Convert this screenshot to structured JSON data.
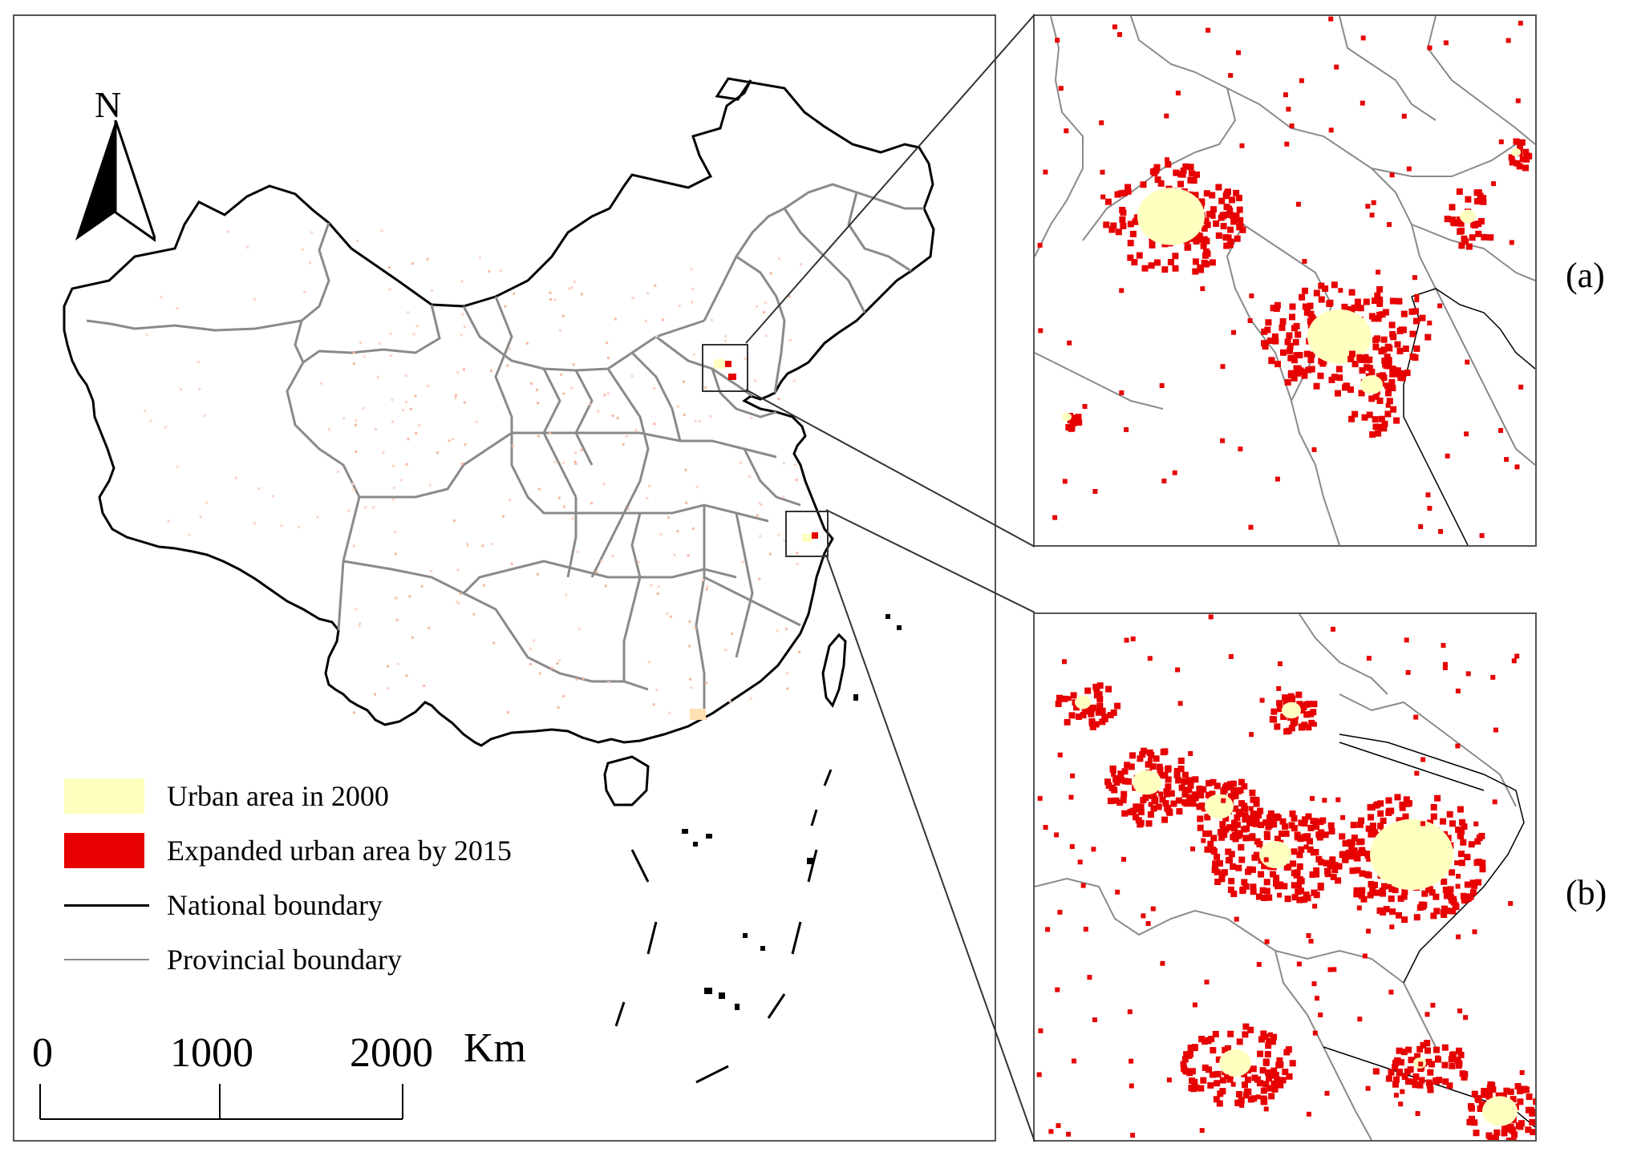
{
  "insets": {
    "a_label": "(a)",
    "b_label": "(b)"
  },
  "north_arrow": {
    "letter": "N",
    "icon": "north-arrow-icon"
  },
  "legend": {
    "urban_2000": "Urban area in 2000",
    "expanded_2015": "Expanded urban area by 2015",
    "national_boundary": "National boundary",
    "provincial_boundary": "Provincial boundary"
  },
  "scale_bar": {
    "tick_0": "0",
    "tick_1000": "1000",
    "tick_2000": "2000",
    "unit": "Km"
  },
  "colors": {
    "urban_2000": "#ffffc0",
    "expanded_2015": "#e60000",
    "national_boundary": "#000000",
    "provincial_boundary": "#8a8a8a",
    "panel_border": "#555555"
  }
}
